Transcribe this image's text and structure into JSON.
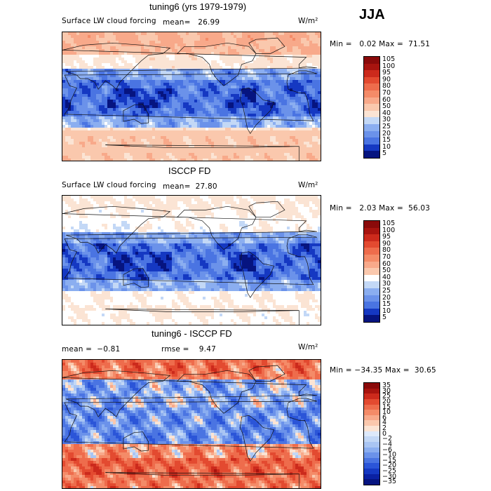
{
  "header": {
    "season": "JJA"
  },
  "colors": {
    "pos": [
      "#fbe4d4",
      "#fac8ad",
      "#f8a98a",
      "#f48b68",
      "#ee6c4c",
      "#e34a30",
      "#cc2a1c",
      "#a8140f",
      "#8a0a0a"
    ],
    "neg": [
      "#dde9fa",
      "#c3d8f6",
      "#a9c5f3",
      "#8baef0",
      "#6b92ea",
      "#4a74e2",
      "#2b55d8",
      "#1538c2",
      "#0a21a3",
      "#061480"
    ]
  },
  "panels": [
    {
      "title": "tuning6 (yrs 1979-1979)",
      "left_label": "Surface LW cloud forcing",
      "stat_label": "mean=",
      "stat_value": "26.99",
      "units": "W/m²",
      "min_label": "Min =",
      "min_value": "0.02",
      "max_label": "Max =",
      "max_value": "71.51"
    },
    {
      "title": "ISCCP FD",
      "left_label": "Surface LW cloud forcing",
      "stat_label": "mean=",
      "stat_value": "27.80",
      "units": "W/m²",
      "min_label": "Min =",
      "min_value": "2.03",
      "max_label": "Max =",
      "max_value": "56.03"
    },
    {
      "title": "tuning6 - ISCCP FD",
      "mean_label": "mean =",
      "mean_value": "−0.81",
      "rmse_label": "rmse =",
      "rmse_value": "9.47",
      "units": "W/m²",
      "min_label": "Min =",
      "min_value": "−34.35",
      "max_label": "Max =",
      "max_value": "30.65"
    }
  ],
  "chart_data": [
    {
      "type": "heatmap",
      "title": "tuning6 (yrs 1979-1979)",
      "variable": "Surface LW cloud forcing",
      "units": "W/m2",
      "mean": 26.99,
      "min": 0.02,
      "max": 71.51,
      "colorbar_levels": [
        "105",
        "100",
        "95",
        "90",
        "80",
        "70",
        "60",
        "50",
        "40",
        "30",
        "25",
        "20",
        "15",
        "10",
        "5"
      ]
    },
    {
      "type": "heatmap",
      "title": "ISCCP FD",
      "variable": "Surface LW cloud forcing",
      "units": "W/m2",
      "mean": 27.8,
      "min": 2.03,
      "max": 56.03,
      "colorbar_levels": [
        "105",
        "100",
        "95",
        "90",
        "80",
        "70",
        "60",
        "50",
        "40",
        "30",
        "25",
        "20",
        "15",
        "10",
        "5"
      ]
    },
    {
      "type": "heatmap",
      "title": "tuning6 - ISCCP FD",
      "units": "W/m2",
      "mean": -0.81,
      "rmse": 9.47,
      "min": -34.35,
      "max": 30.65,
      "colorbar_levels": [
        "35",
        "30",
        "25",
        "20",
        "15",
        "10",
        "6",
        "4",
        "2",
        "0",
        "−2",
        "−4",
        "−6",
        "−10",
        "−15",
        "−20",
        "−25",
        "−30",
        "−35"
      ]
    }
  ]
}
